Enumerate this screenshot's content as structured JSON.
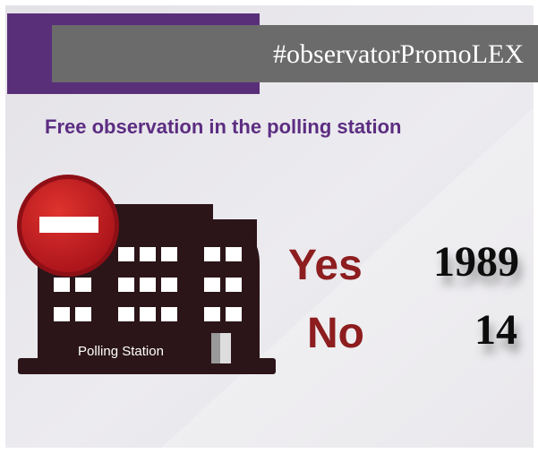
{
  "header": {
    "hashtag": "#observatorPromoLEX"
  },
  "subtitle": "Free observation in the polling station",
  "building": {
    "label": "Polling Station"
  },
  "results": [
    {
      "label": "Yes",
      "value": "1989"
    },
    {
      "label": "No",
      "value": "14"
    }
  ]
}
